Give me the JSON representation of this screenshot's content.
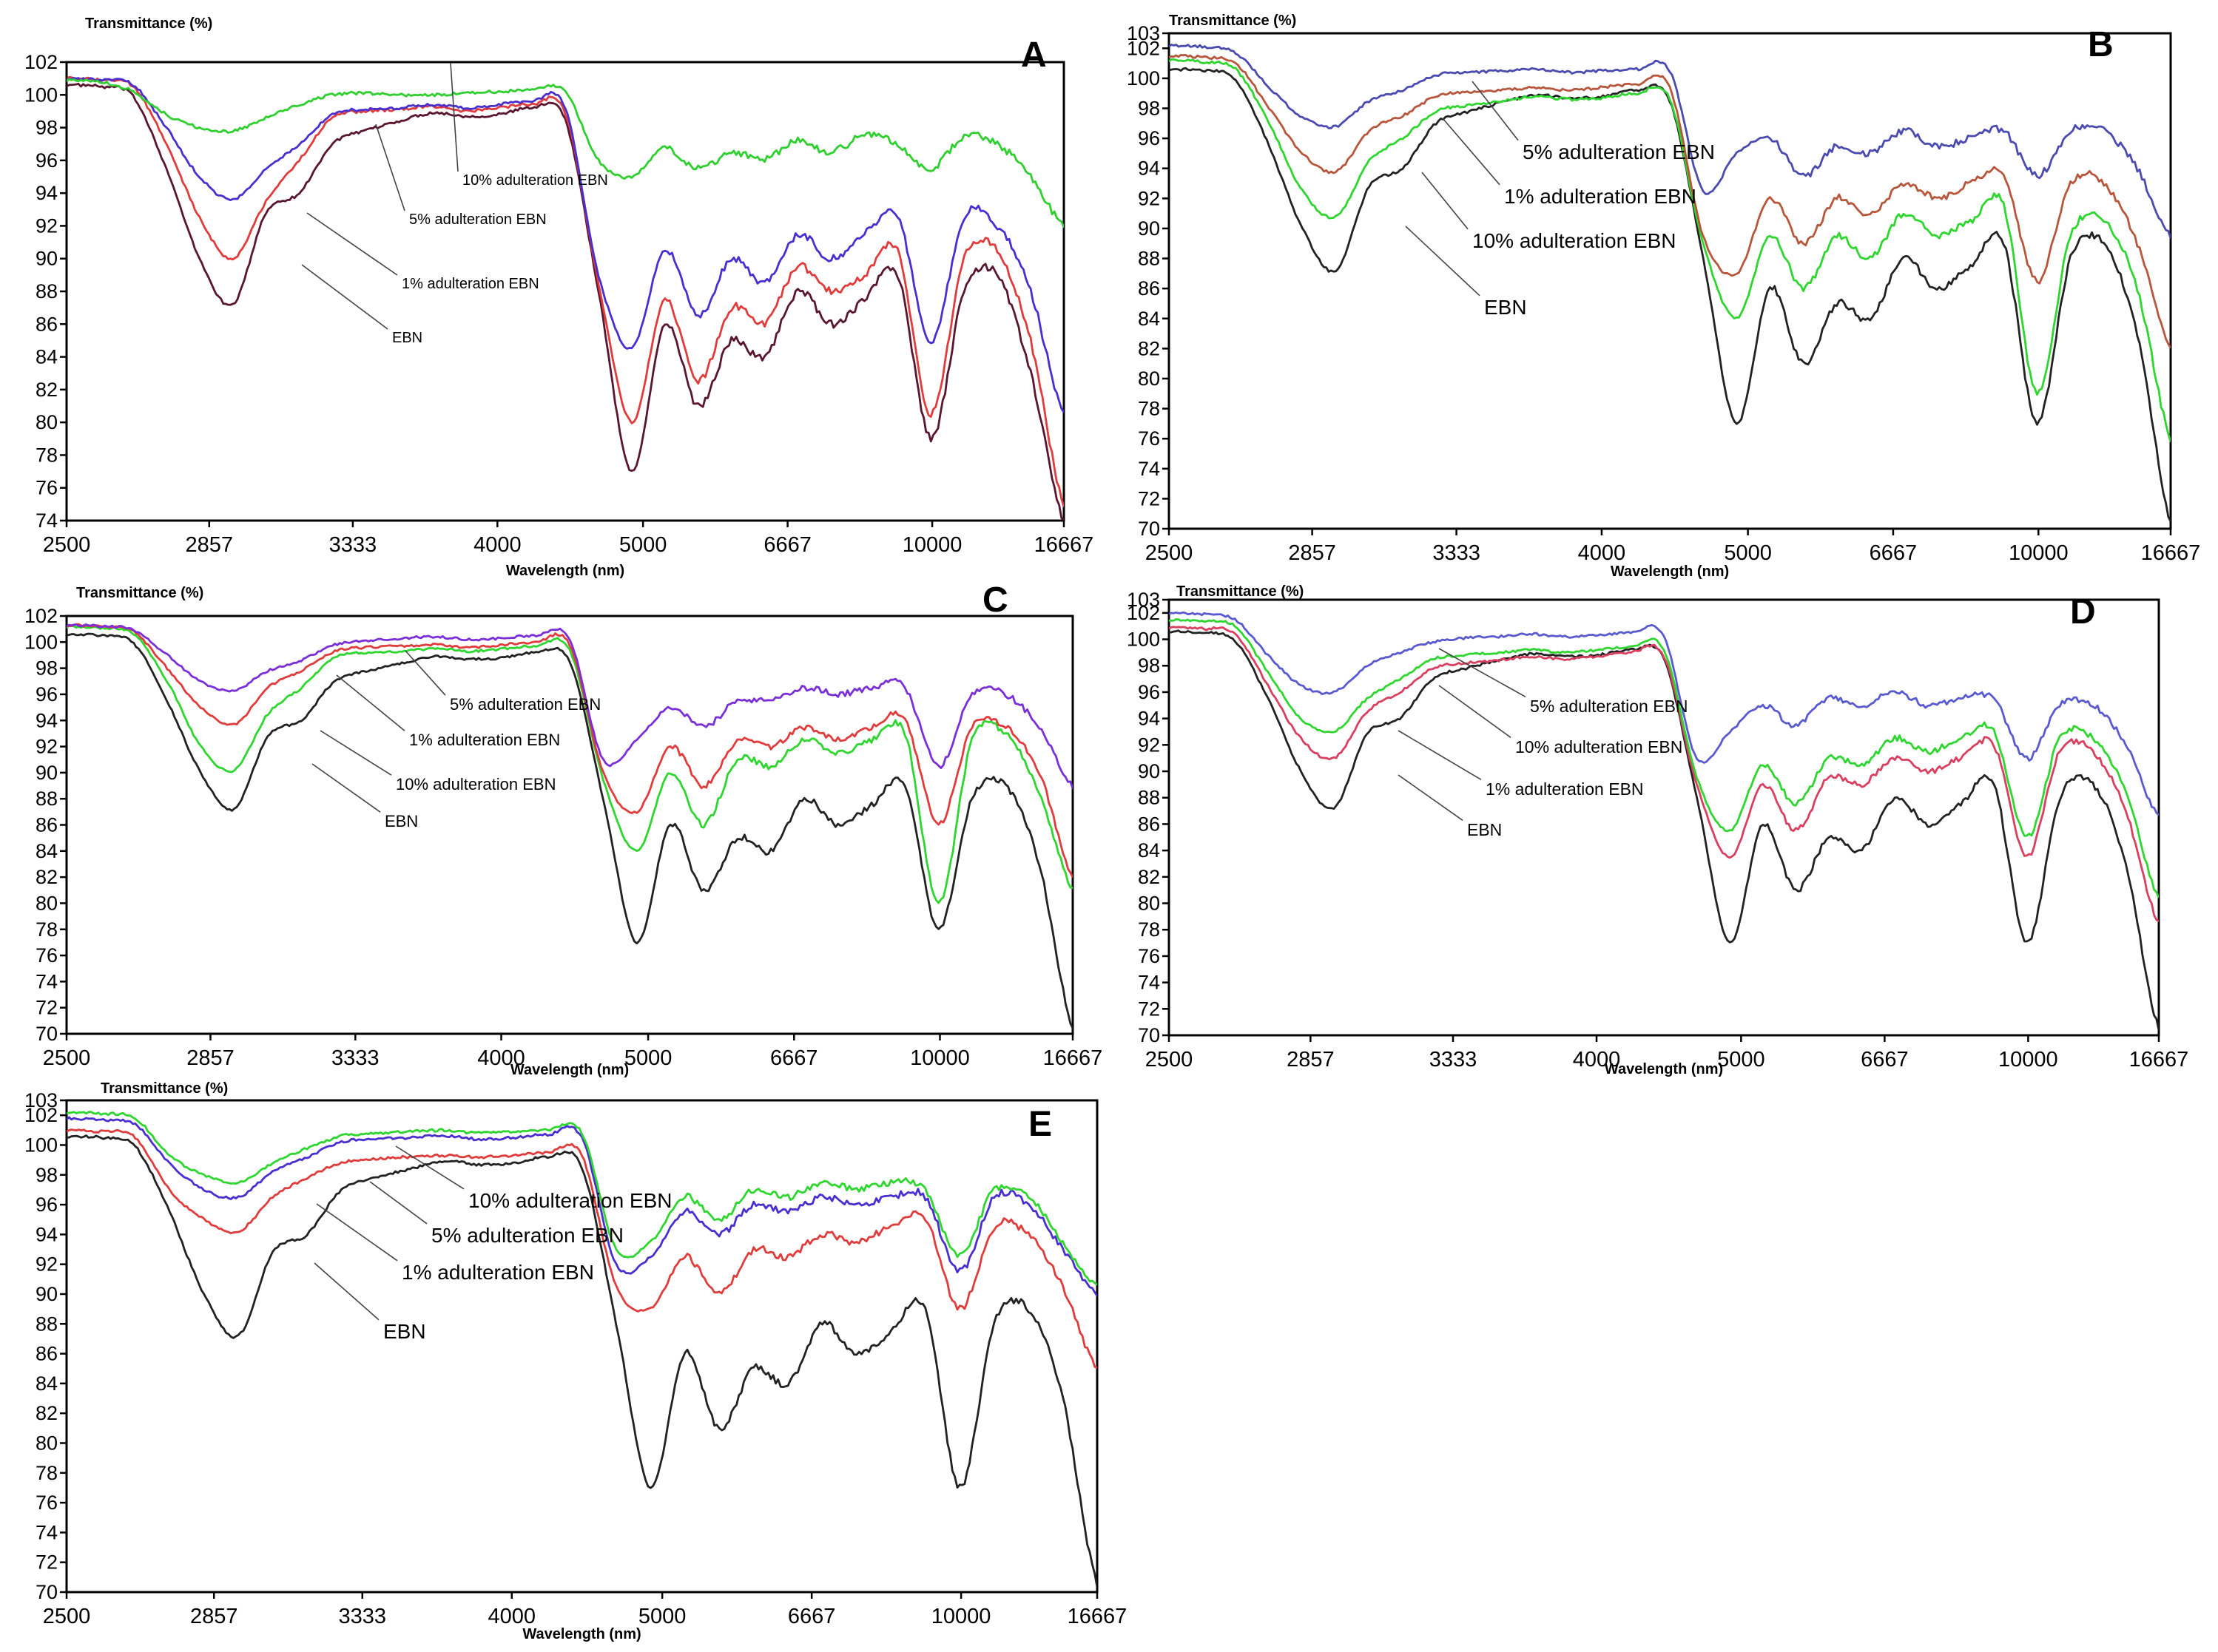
{
  "chart_data": [
    {
      "id": "A",
      "type": "line",
      "panel_letter": "A",
      "ylabel": "Transmittance (%)",
      "xlabel": "Wavelength (nm)",
      "ylim": [
        74,
        102
      ],
      "yticks": [
        74,
        76,
        78,
        80,
        82,
        84,
        86,
        88,
        90,
        92,
        94,
        96,
        98,
        100,
        102
      ],
      "xtick_labels": [
        "2500",
        "2857",
        "3333",
        "4000",
        "5000",
        "6667",
        "10000",
        "16667"
      ],
      "series": [
        {
          "name": "EBN",
          "color": "#5a1630",
          "base": [
            100.6,
            100.5,
            99.9,
            95.5,
            90.0,
            87.2,
            92.8,
            94.0,
            97.0,
            97.8,
            98.4,
            98.9,
            98.7,
            98.8,
            99.2,
            98.5,
            88.0,
            77.0,
            86.0,
            81.0,
            85.0,
            84.0,
            88.0,
            86.0,
            87.5,
            89.0,
            79.0,
            88.0,
            89.0,
            83.0,
            74.0
          ]
        },
        {
          "name": "1% adulteration EBN",
          "color": "#e03c3c",
          "base": [
            101.0,
            100.9,
            100.5,
            97.0,
            92.5,
            90.0,
            93.5,
            96.0,
            98.6,
            99.0,
            99.1,
            99.3,
            99.0,
            99.2,
            99.4,
            98.9,
            88.5,
            80.0,
            87.5,
            82.5,
            87.0,
            86.0,
            89.5,
            88.0,
            89.0,
            90.5,
            80.5,
            90.0,
            90.5,
            85.0,
            75.0
          ]
        },
        {
          "name": "5% adulteration EBN",
          "color": "#4a2fd0",
          "base": [
            101.0,
            100.9,
            100.6,
            98.0,
            95.0,
            93.6,
            95.5,
            97.0,
            98.8,
            99.1,
            99.2,
            99.4,
            99.2,
            99.4,
            99.6,
            99.2,
            89.0,
            84.5,
            90.5,
            86.5,
            90.0,
            88.5,
            91.5,
            90.0,
            91.5,
            92.5,
            85.0,
            92.5,
            92.0,
            88.0,
            80.5
          ]
        },
        {
          "name": "10% adulteration EBN",
          "color": "#2fcf2f",
          "base": [
            100.9,
            100.8,
            100.2,
            98.8,
            98.0,
            97.8,
            98.6,
            99.4,
            100.0,
            100.1,
            100.0,
            100.0,
            100.1,
            100.2,
            100.3,
            100.2,
            96.0,
            95.0,
            96.8,
            95.5,
            96.5,
            96.0,
            97.2,
            96.5,
            97.5,
            97.0,
            95.5,
            97.5,
            97.0,
            95.0,
            92.0
          ]
        }
      ],
      "annotations": [
        "10% adulteration EBN",
        "5% adulteration EBN",
        "1% adulteration EBN",
        "EBN"
      ]
    },
    {
      "id": "B",
      "type": "line",
      "panel_letter": "B",
      "ylabel": "Transmittance (%)",
      "xlabel": "Wavelength (nm)",
      "ylim": [
        70,
        103
      ],
      "yticks": [
        70,
        72,
        74,
        76,
        78,
        80,
        82,
        84,
        86,
        88,
        90,
        92,
        94,
        96,
        98,
        100,
        102,
        103
      ],
      "xtick_labels": [
        "2500",
        "2857",
        "3333",
        "4000",
        "5000",
        "6667",
        "10000",
        "16667"
      ],
      "series": [
        {
          "name": "EBN",
          "color": "#222222",
          "base": [
            100.6,
            100.5,
            99.9,
            95.5,
            90.0,
            87.2,
            92.8,
            94.0,
            97.0,
            97.8,
            98.4,
            98.9,
            98.7,
            98.8,
            99.2,
            98.5,
            88.0,
            77.0,
            86.0,
            81.0,
            85.0,
            84.0,
            88.0,
            86.0,
            87.5,
            89.0,
            77.0,
            88.0,
            89.0,
            83.0,
            70.5
          ]
        },
        {
          "name": "10% adulteration EBN",
          "color": "#2fd62f",
          "base": [
            101.2,
            101.1,
            100.6,
            97.0,
            92.5,
            90.8,
            94.5,
            96.0,
            97.8,
            98.2,
            98.5,
            98.8,
            98.6,
            98.7,
            99.0,
            98.6,
            89.0,
            84.0,
            89.5,
            86.0,
            89.5,
            88.0,
            91.0,
            89.5,
            90.5,
            91.5,
            79.0,
            89.5,
            90.5,
            86.0,
            76.0
          ]
        },
        {
          "name": "1% adulteration EBN",
          "color": "#b8563c",
          "base": [
            101.5,
            101.4,
            101.0,
            98.0,
            95.0,
            93.8,
            96.5,
            97.5,
            98.8,
            99.1,
            99.2,
            99.4,
            99.2,
            99.4,
            99.6,
            99.4,
            89.5,
            87.0,
            92.0,
            89.0,
            92.0,
            91.0,
            93.0,
            92.0,
            93.0,
            93.5,
            86.5,
            93.0,
            93.0,
            89.0,
            82.0
          ]
        },
        {
          "name": "5% adulteration EBN",
          "color": "#4a4ab0",
          "base": [
            102.2,
            102.1,
            101.7,
            99.4,
            97.4,
            96.8,
            98.5,
            99.2,
            100.2,
            100.4,
            100.5,
            100.6,
            100.4,
            100.5,
            100.6,
            100.5,
            92.5,
            95.0,
            96.0,
            93.5,
            95.5,
            95.0,
            96.5,
            95.5,
            96.0,
            96.5,
            93.5,
            96.5,
            96.5,
            94.0,
            89.5
          ]
        }
      ],
      "annotations": [
        "5% adulteration EBN",
        "1% adulteration EBN",
        "10% adulteration EBN",
        "EBN"
      ]
    },
    {
      "id": "C",
      "type": "line",
      "panel_letter": "C",
      "ylabel": "Transmittance (%)",
      "xlabel": "Wavelength (nm)",
      "ylim": [
        70,
        102
      ],
      "yticks": [
        70,
        72,
        74,
        76,
        78,
        80,
        82,
        84,
        86,
        88,
        90,
        92,
        94,
        96,
        98,
        100,
        102
      ],
      "xtick_labels": [
        "2500",
        "2857",
        "3333",
        "4000",
        "5000",
        "6667",
        "10000",
        "16667"
      ],
      "series": [
        {
          "name": "EBN",
          "color": "#222222",
          "base": [
            100.6,
            100.5,
            99.9,
            95.5,
            90.0,
            87.2,
            92.8,
            94.0,
            97.0,
            97.8,
            98.4,
            98.9,
            98.7,
            98.8,
            99.2,
            98.5,
            88.0,
            77.0,
            86.0,
            81.0,
            85.0,
            84.0,
            88.0,
            86.0,
            87.5,
            89.0,
            78.0,
            88.0,
            89.0,
            83.0,
            70.5
          ]
        },
        {
          "name": "10% adulteration EBN",
          "color": "#2fd62f",
          "base": [
            101.2,
            101.1,
            100.6,
            97.0,
            92.0,
            90.2,
            94.5,
            96.5,
            98.8,
            99.2,
            99.3,
            99.5,
            99.3,
            99.5,
            99.7,
            99.4,
            89.5,
            84.0,
            90.0,
            86.0,
            91.0,
            90.5,
            92.5,
            91.5,
            92.5,
            93.0,
            80.0,
            92.5,
            93.0,
            88.5,
            81.0
          ]
        },
        {
          "name": "1% adulteration EBN",
          "color": "#e03c3c",
          "base": [
            101.3,
            101.2,
            100.8,
            98.0,
            95.0,
            93.7,
            96.5,
            97.8,
            99.3,
            99.6,
            99.7,
            99.8,
            99.6,
            99.8,
            100.0,
            99.8,
            90.0,
            87.0,
            92.0,
            89.0,
            92.5,
            92.0,
            93.5,
            92.5,
            93.5,
            94.0,
            86.0,
            93.5,
            93.5,
            90.0,
            82.0
          ]
        },
        {
          "name": "5% adulteration EBN",
          "color": "#7a2fd8",
          "base": [
            101.3,
            101.2,
            100.9,
            99.0,
            97.0,
            96.3,
            97.8,
            98.6,
            99.8,
            100.1,
            100.3,
            100.4,
            100.2,
            100.3,
            100.5,
            100.2,
            91.0,
            92.5,
            95.0,
            93.5,
            95.5,
            95.5,
            96.5,
            96.0,
            96.5,
            96.5,
            90.5,
            96.0,
            96.0,
            93.5,
            89.0
          ]
        }
      ],
      "annotations": [
        "5% adulteration EBN",
        "1% adulteration EBN",
        "10% adulteration EBN",
        "EBN"
      ]
    },
    {
      "id": "D",
      "type": "line",
      "panel_letter": "D",
      "ylabel": "Transmittance (%)",
      "xlabel": "Wavelength (nm)",
      "ylim": [
        70,
        103
      ],
      "yticks": [
        70,
        72,
        74,
        76,
        78,
        80,
        82,
        84,
        86,
        88,
        90,
        92,
        94,
        96,
        98,
        100,
        102,
        103
      ],
      "xtick_labels": [
        "2500",
        "2857",
        "3333",
        "4000",
        "5000",
        "6667",
        "10000",
        "16667"
      ],
      "series": [
        {
          "name": "EBN",
          "color": "#222222",
          "base": [
            100.6,
            100.5,
            99.9,
            95.5,
            90.0,
            87.2,
            92.8,
            94.0,
            97.0,
            97.8,
            98.4,
            98.9,
            98.7,
            98.8,
            99.2,
            98.5,
            88.0,
            77.0,
            86.0,
            81.0,
            85.0,
            84.0,
            88.0,
            86.0,
            87.5,
            89.0,
            77.0,
            88.0,
            89.0,
            83.0,
            70.5
          ]
        },
        {
          "name": "1% adulteration EBN",
          "color": "#d94060",
          "base": [
            100.9,
            100.8,
            100.4,
            96.5,
            92.5,
            91.0,
            94.5,
            96.0,
            97.8,
            98.2,
            98.4,
            98.7,
            98.5,
            98.7,
            99.0,
            98.7,
            89.0,
            83.5,
            89.0,
            85.5,
            89.5,
            89.0,
            91.0,
            90.0,
            91.0,
            92.0,
            83.5,
            91.5,
            91.5,
            87.0,
            78.5
          ]
        },
        {
          "name": "10% adulteration EBN",
          "color": "#2fd62f",
          "base": [
            101.5,
            101.4,
            101.0,
            97.5,
            94.0,
            93.0,
            95.5,
            97.0,
            98.5,
            98.8,
            99.0,
            99.2,
            99.0,
            99.2,
            99.4,
            99.2,
            89.5,
            85.5,
            90.5,
            87.5,
            91.0,
            90.5,
            92.5,
            91.5,
            92.5,
            93.0,
            85.0,
            92.5,
            92.5,
            88.5,
            80.5
          ]
        },
        {
          "name": "5% adulteration EBN",
          "color": "#5a5ad0",
          "base": [
            102.0,
            101.9,
            101.5,
            98.8,
            96.5,
            96.0,
            98.0,
            99.0,
            99.8,
            100.1,
            100.2,
            100.4,
            100.2,
            100.3,
            100.5,
            100.2,
            91.0,
            93.0,
            95.0,
            93.5,
            95.5,
            95.0,
            96.0,
            95.0,
            95.5,
            95.5,
            91.0,
            95.0,
            95.0,
            92.0,
            86.5
          ]
        }
      ],
      "annotations": [
        "5% adulteration EBN",
        "10% adulteration EBN",
        "1% adulteration EBN",
        "EBN"
      ]
    },
    {
      "id": "E",
      "type": "line",
      "panel_letter": "E",
      "ylabel": "Transmittance (%)",
      "xlabel": "Wavelength (nm)",
      "ylim": [
        70,
        103
      ],
      "yticks": [
        70,
        72,
        74,
        76,
        78,
        80,
        82,
        84,
        86,
        88,
        90,
        92,
        94,
        96,
        98,
        100,
        102,
        103
      ],
      "xtick_labels": [
        "2500",
        "2857",
        "3333",
        "4000",
        "5000",
        "6667",
        "10000",
        "16667"
      ],
      "series": [
        {
          "name": "EBN",
          "color": "#222222",
          "base": [
            100.6,
            100.5,
            99.9,
            95.5,
            90.0,
            87.2,
            92.8,
            94.0,
            97.0,
            97.8,
            98.4,
            98.9,
            98.7,
            98.8,
            99.2,
            98.5,
            88.0,
            77.0,
            86.0,
            81.0,
            85.0,
            84.0,
            88.0,
            86.0,
            87.5,
            89.0,
            77.0,
            88.0,
            89.0,
            83.0,
            70.5
          ]
        },
        {
          "name": "1% adulteration EBN",
          "color": "#e03c3c",
          "base": [
            101.0,
            100.9,
            100.5,
            97.0,
            95.0,
            94.2,
            96.5,
            97.8,
            98.8,
            99.1,
            99.2,
            99.3,
            99.2,
            99.3,
            99.5,
            99.3,
            90.5,
            89.0,
            92.5,
            90.0,
            93.0,
            92.5,
            94.0,
            93.5,
            94.5,
            95.0,
            89.0,
            94.5,
            94.0,
            90.5,
            85.0
          ]
        },
        {
          "name": "5% adulteration EBN",
          "color": "#4a2fd0",
          "base": [
            101.8,
            101.7,
            101.4,
            98.8,
            97.0,
            96.5,
            98.2,
            99.2,
            100.2,
            100.4,
            100.5,
            100.6,
            100.4,
            100.5,
            100.7,
            100.5,
            92.0,
            92.5,
            95.5,
            94.0,
            96.0,
            95.5,
            96.5,
            96.0,
            96.5,
            96.5,
            91.5,
            96.5,
            96.0,
            93.0,
            90.0
          ]
        },
        {
          "name": "10% adulteration EBN",
          "color": "#2fd62f",
          "base": [
            102.2,
            102.1,
            101.8,
            99.3,
            98.0,
            97.5,
            98.8,
            99.8,
            100.6,
            100.8,
            100.9,
            101.0,
            100.8,
            100.9,
            101.0,
            100.8,
            93.0,
            93.5,
            96.5,
            95.0,
            97.0,
            96.5,
            97.5,
            97.0,
            97.5,
            97.0,
            92.5,
            97.0,
            96.5,
            93.5,
            90.5
          ]
        }
      ],
      "annotations": [
        "10% adulteration EBN",
        "5% adulteration EBN",
        "1% adulteration EBN",
        "EBN"
      ]
    }
  ]
}
